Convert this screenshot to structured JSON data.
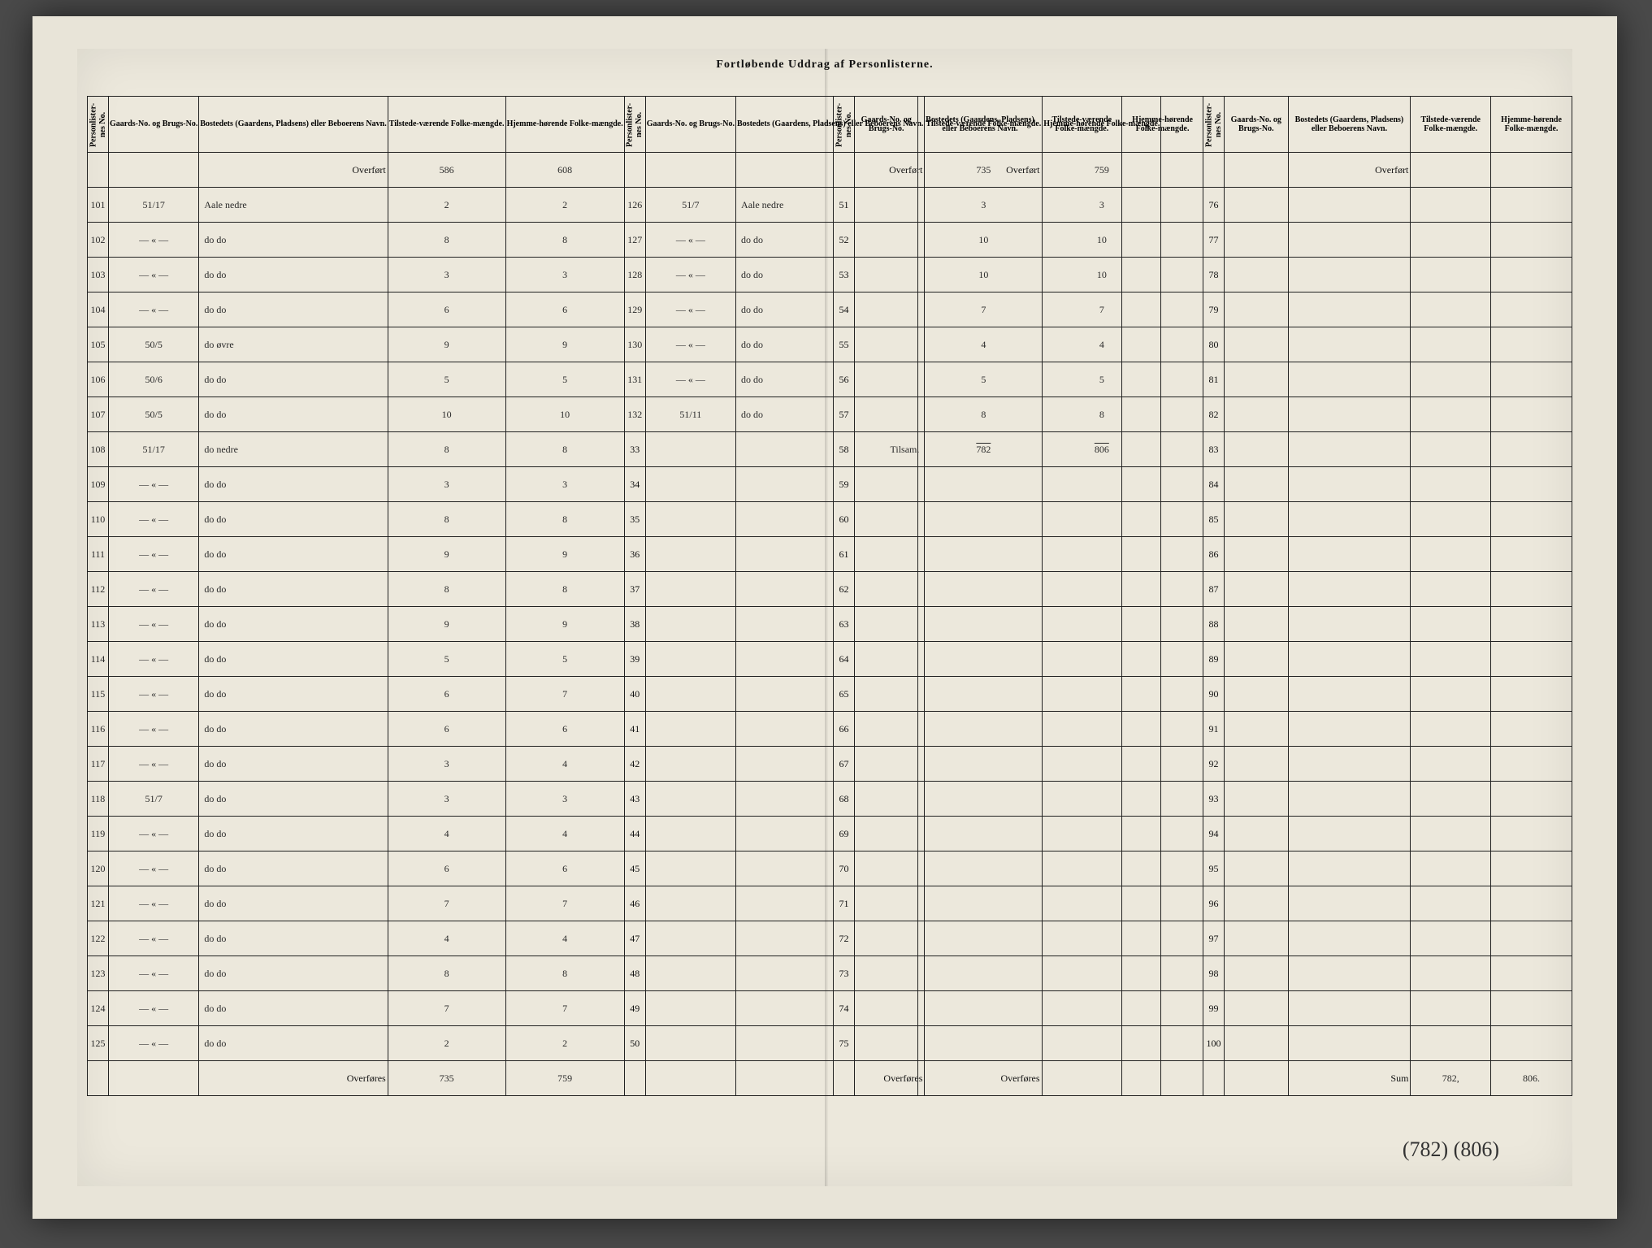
{
  "title": "Fortløbende Uddrag af Personlisterne.",
  "headers": {
    "personliste": "Personlister-nes No.",
    "gaard": "Gaards-No. og Brugs-No.",
    "bosted": "Bostedets (Gaardens, Pladsens) eller Beboerens Navn.",
    "tilstede": "Tilstede-værende Folke-mængde.",
    "hjemme": "Hjemme-hørende Folke-mængde."
  },
  "overfort_label": "Overført",
  "overfores_label": "Overføres",
  "sum_label": "Sum",
  "block1": {
    "overfort_tilstede": "586",
    "overfort_hjemme": "608",
    "rows": [
      {
        "no": "101",
        "gno": "51/17",
        "bost": "Aale nedre",
        "t": "2",
        "h": "2"
      },
      {
        "no": "102",
        "gno": "— « —",
        "bost": "do    do",
        "t": "8",
        "h": "8"
      },
      {
        "no": "103",
        "gno": "— « —",
        "bost": "do    do",
        "t": "3",
        "h": "3"
      },
      {
        "no": "104",
        "gno": "— « —",
        "bost": "do    do",
        "t": "6",
        "h": "6"
      },
      {
        "no": "105",
        "gno": "50/5",
        "bost": "do  øvre",
        "t": "9",
        "h": "9"
      },
      {
        "no": "106",
        "gno": "50/6",
        "bost": "do    do",
        "t": "5",
        "h": "5"
      },
      {
        "no": "107",
        "gno": "50/5",
        "bost": "do    do",
        "t": "10",
        "h": "10"
      },
      {
        "no": "108",
        "gno": "51/17",
        "bost": "do  nedre",
        "t": "8",
        "h": "8"
      },
      {
        "no": "109",
        "gno": "— « —",
        "bost": "do    do",
        "t": "3",
        "h": "3"
      },
      {
        "no": "110",
        "gno": "— « —",
        "bost": "do    do",
        "t": "8",
        "h": "8"
      },
      {
        "no": "111",
        "gno": "— « —",
        "bost": "do    do",
        "t": "9",
        "h": "9"
      },
      {
        "no": "112",
        "gno": "— « —",
        "bost": "do    do",
        "t": "8",
        "h": "8"
      },
      {
        "no": "113",
        "gno": "— « —",
        "bost": "do    do",
        "t": "9",
        "h": "9"
      },
      {
        "no": "114",
        "gno": "— « —",
        "bost": "do    do",
        "t": "5",
        "h": "5"
      },
      {
        "no": "115",
        "gno": "— « —",
        "bost": "do    do",
        "t": "6",
        "h": "7"
      },
      {
        "no": "116",
        "gno": "— « —",
        "bost": "do    do",
        "t": "6",
        "h": "6"
      },
      {
        "no": "117",
        "gno": "— « —",
        "bost": "do    do",
        "t": "3",
        "h": "4"
      },
      {
        "no": "118",
        "gno": "51/7",
        "bost": "do    do",
        "t": "3",
        "h": "3"
      },
      {
        "no": "119",
        "gno": "— « —",
        "bost": "do    do",
        "t": "4",
        "h": "4"
      },
      {
        "no": "120",
        "gno": "— « —",
        "bost": "do    do",
        "t": "6",
        "h": "6"
      },
      {
        "no": "121",
        "gno": "— « —",
        "bost": "do    do",
        "t": "7",
        "h": "7"
      },
      {
        "no": "122",
        "gno": "— « —",
        "bost": "do    do",
        "t": "4",
        "h": "4"
      },
      {
        "no": "123",
        "gno": "— « —",
        "bost": "do    do",
        "t": "8",
        "h": "8"
      },
      {
        "no": "124",
        "gno": "— « —",
        "bost": "do    do",
        "t": "7",
        "h": "7"
      },
      {
        "no": "125",
        "gno": "— « —",
        "bost": "do    do",
        "t": "2",
        "h": "2"
      }
    ],
    "overfores_tilstede": "735",
    "overfores_hjemme": "759"
  },
  "block2": {
    "overfort_tilstede": "735",
    "overfort_hjemme": "759",
    "rows": [
      {
        "no": "126",
        "gno": "51/7",
        "bost": "Aale nedre",
        "t": "3",
        "h": "3"
      },
      {
        "no": "127",
        "gno": "— « —",
        "bost": "do    do",
        "t": "10",
        "h": "10"
      },
      {
        "no": "128",
        "gno": "— « —",
        "bost": "do    do",
        "t": "10",
        "h": "10"
      },
      {
        "no": "129",
        "gno": "— « —",
        "bost": "do    do",
        "t": "7",
        "h": "7"
      },
      {
        "no": "130",
        "gno": "— « —",
        "bost": "do    do",
        "t": "4",
        "h": "4"
      },
      {
        "no": "131",
        "gno": "— « —",
        "bost": "do    do",
        "t": "5",
        "h": "5"
      },
      {
        "no": "132",
        "gno": "51/11",
        "bost": "do    do",
        "t": "8",
        "h": "8"
      }
    ],
    "sum_label_cell": "Tilsam.",
    "sum_tilstede": "782",
    "sum_hjemme": "806",
    "empty_start": 33,
    "empty_end": 50
  },
  "block3": {
    "empty_start": 51,
    "empty_end": 75
  },
  "block4": {
    "empty_start": 76,
    "empty_end": 100
  },
  "final_sum_tilstede": "782,",
  "final_sum_hjemme": "806.",
  "footer_note": "(782) (806)"
}
